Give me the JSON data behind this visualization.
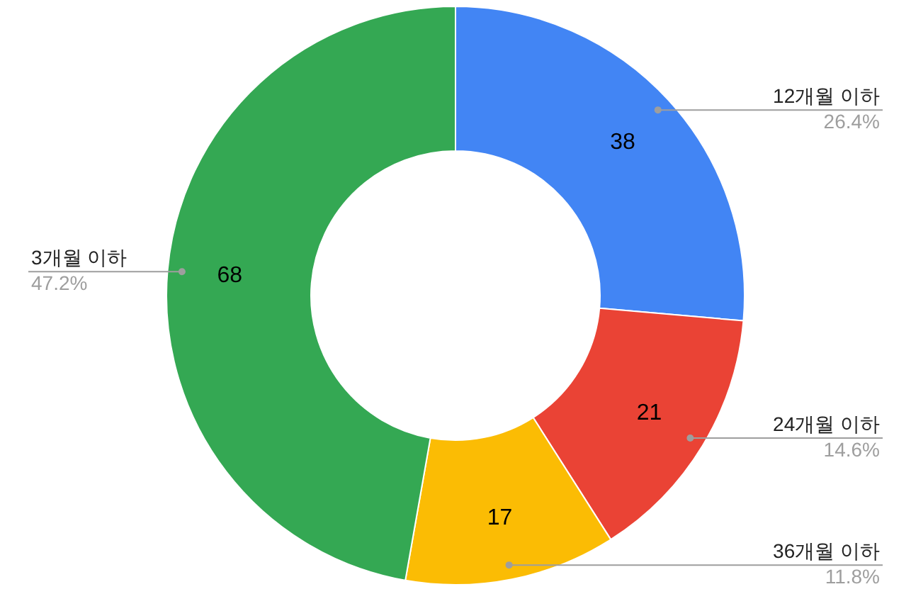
{
  "chart_data": {
    "type": "donut",
    "categories": [
      "12개월 이하",
      "24개월 이하",
      "36개월 이하",
      "3개월 이하"
    ],
    "values": [
      38,
      21,
      17,
      68
    ],
    "colors": [
      "#4285f4",
      "#ea4335",
      "#fbbc04",
      "#34a853"
    ],
    "data_labels": true,
    "annotations": [
      "26.4%",
      "14.6%",
      "11.8%",
      "47.2%"
    ],
    "legend": false
  }
}
